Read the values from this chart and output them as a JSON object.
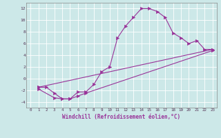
{
  "xlabel": "Windchill (Refroidissement éolien,°C)",
  "bg_color": "#cce8e8",
  "line_color": "#993399",
  "xlim": [
    -0.5,
    23.5
  ],
  "ylim": [
    -5,
    13
  ],
  "xticks": [
    0,
    1,
    2,
    3,
    4,
    5,
    6,
    7,
    8,
    9,
    10,
    11,
    12,
    13,
    14,
    15,
    16,
    17,
    18,
    19,
    20,
    21,
    22,
    23
  ],
  "yticks": [
    -4,
    -2,
    0,
    2,
    4,
    6,
    8,
    10,
    12
  ],
  "series": [
    {
      "x": [
        1,
        2,
        3,
        4,
        5,
        6,
        7,
        8,
        9,
        10,
        11,
        12,
        13,
        14,
        15,
        16,
        17,
        18,
        19,
        20,
        21,
        22,
        23
      ],
      "y": [
        -1.5,
        -1.5,
        -2.5,
        -3.5,
        -3.5,
        -2.3,
        -2.3,
        -1.0,
        1.2,
        2.0,
        7.0,
        9.0,
        10.5,
        12.0,
        12.0,
        11.5,
        10.5,
        7.8,
        7.0,
        6.0,
        6.5,
        5.0,
        5.0
      ]
    },
    {
      "x": [
        1,
        23
      ],
      "y": [
        -1.5,
        5.0
      ]
    },
    {
      "x": [
        1,
        3,
        4,
        5,
        6,
        7,
        23
      ],
      "y": [
        -1.8,
        -3.3,
        -3.5,
        -3.5,
        -3.0,
        -2.5,
        4.8
      ]
    }
  ]
}
